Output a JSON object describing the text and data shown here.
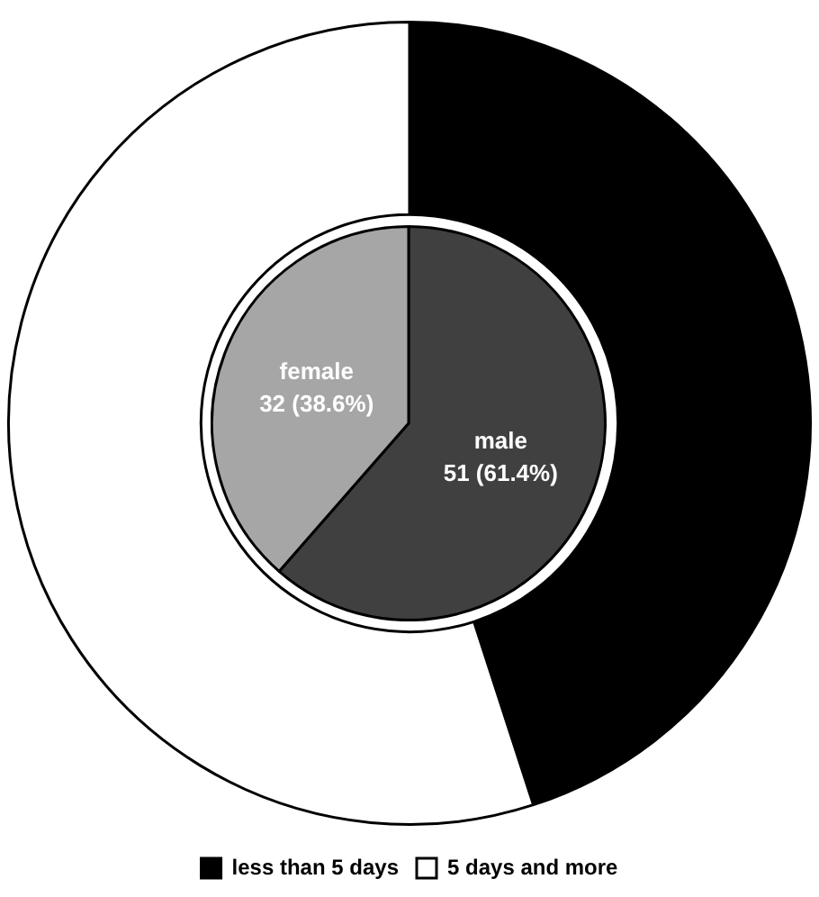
{
  "chart_data": [
    {
      "type": "donut",
      "categories": [
        "less than 5 days",
        "5 days and more"
      ],
      "values": [
        45,
        55
      ],
      "colors": [
        "#000000",
        "#ffffff"
      ],
      "legend": "bottom"
    },
    {
      "type": "pie",
      "categories": [
        "male",
        "female"
      ],
      "values": [
        51,
        32
      ],
      "colors": [
        "#404040",
        "#a6a6a6"
      ],
      "value_labels": [
        "51 (61.4%)",
        "32 (38.6%)"
      ]
    }
  ]
}
